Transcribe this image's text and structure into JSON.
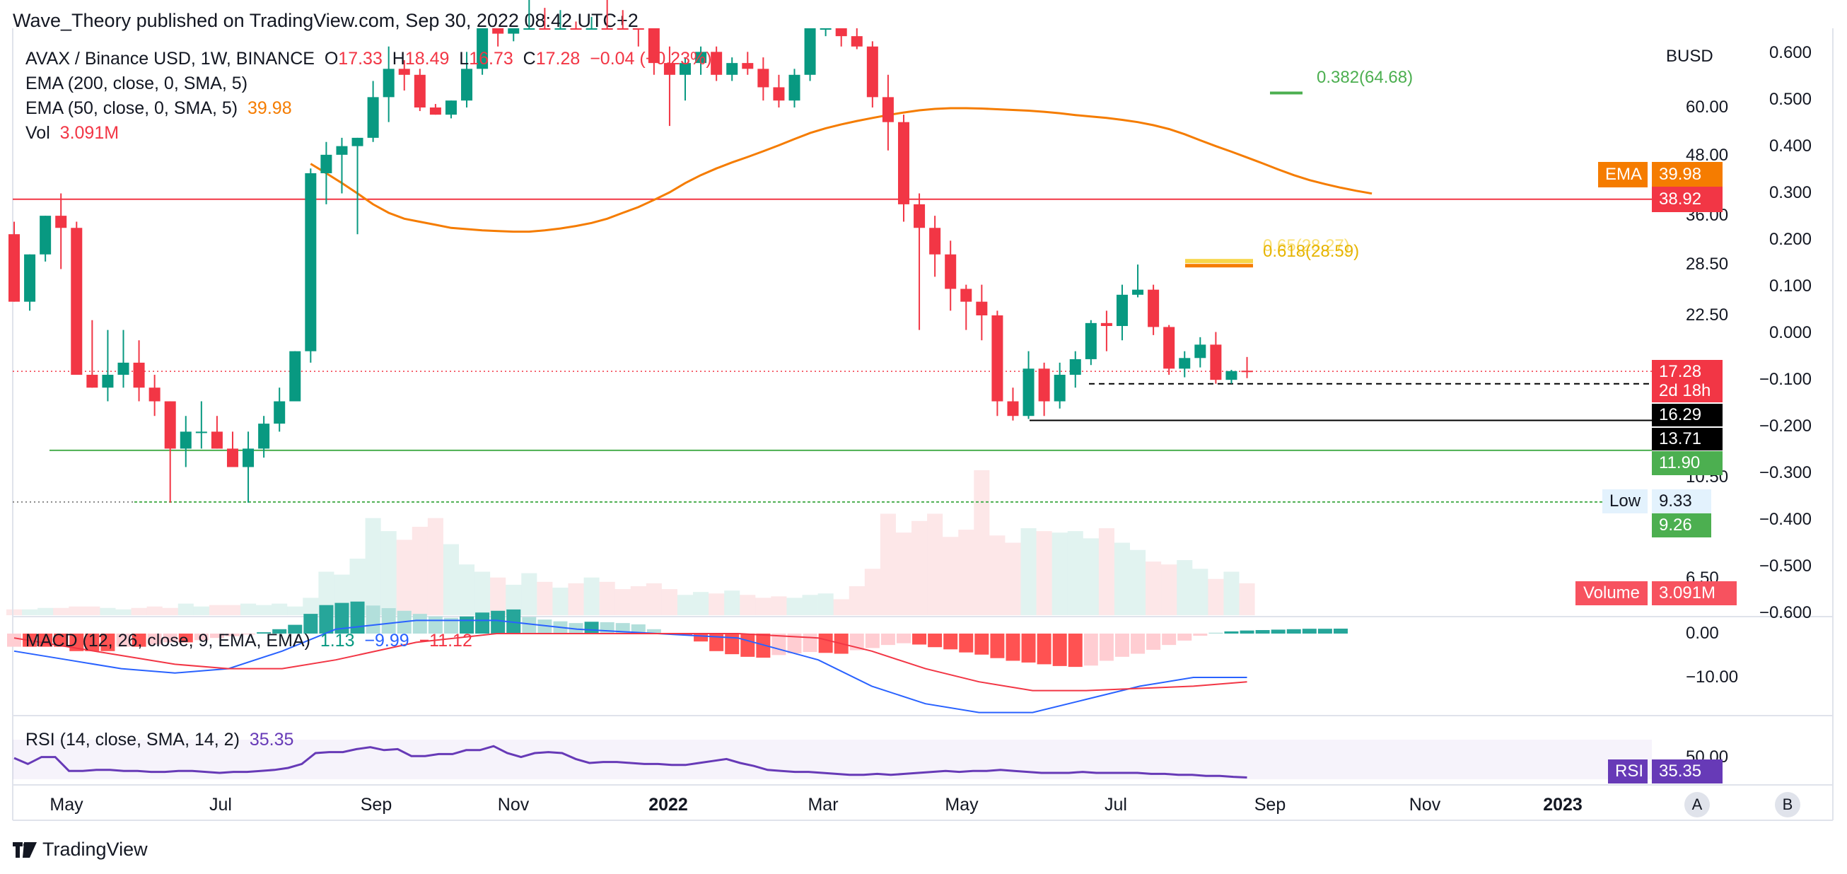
{
  "header": "Wave_Theory published on TradingView.com, Sep 30, 2022 08:42 UTC+2",
  "legend": {
    "symbol": "AVAX / Binance USD, 1W, BINANCE",
    "o_label": "O",
    "o_val": "17.33",
    "h_label": "H",
    "h_val": "18.49",
    "l_label": "L",
    "l_val": "16.73",
    "c_label": "C",
    "c_val": "17.28",
    "change": "−0.04 (−0.23%)",
    "ema200": "EMA (200, close, 0, SMA, 5)",
    "ema50": "EMA (50, close, 0, SMA, 5)",
    "ema50_val": "39.98",
    "vol": "Vol",
    "vol_val": "3.091M",
    "macd": "MACD (12, 26, close, 9, EMA, EMA)",
    "macd_v1": "1.13",
    "macd_v2": "−9.99",
    "macd_v3": "−11.12",
    "rsi": "RSI (14, close, SMA, 14, 2)",
    "rsi_val": "35.35"
  },
  "fib": {
    "f382": "0.382(64.68)",
    "f618": "0.618(28.59)",
    "f618_ghost": "0.65(28.27)"
  },
  "right_axis": {
    "currency": "BUSD",
    "labels": [
      "60.00",
      "48.00",
      "36.00",
      "28.50",
      "22.50",
      "10.50",
      "6.50"
    ],
    "tags": {
      "ema_name": "EMA",
      "ema_val": "39.98",
      "line": "38.92",
      "price": "17.28",
      "countdown": "2d 18h",
      "p1": "16.29",
      "p2": "13.71",
      "p3": "11.90",
      "low_name": "Low",
      "low_val": "9.33",
      "low2": "9.26",
      "vol_name": "Volume",
      "vol_val": "3.091M",
      "rsi_name": "RSI",
      "rsi_val": "35.35"
    },
    "macd_labels": [
      "0.00",
      "−10.00"
    ],
    "rsi_label": "50.00"
  },
  "left_axis": [
    "0.600",
    "0.500",
    "0.400",
    "0.300",
    "0.200",
    "0.100",
    "0.000",
    "−0.100",
    "−0.200",
    "−0.300",
    "−0.400",
    "−0.500",
    "−0.600"
  ],
  "x_axis": [
    "May",
    "Jul",
    "Sep",
    "Nov",
    "2022",
    "Mar",
    "May",
    "Jul",
    "Sep",
    "Nov",
    "2023"
  ],
  "buttons": {
    "a": "A",
    "b": "B"
  },
  "footer": "TradingView",
  "colors": {
    "up": "#089981",
    "down": "#f23645",
    "ema": "#f57c00",
    "macd": "#2962ff",
    "signal": "#f23645",
    "rsi": "#673ab7"
  },
  "chart_data": {
    "type": "candlestick",
    "title": "AVAX / Binance USD, 1W, BINANCE",
    "price_levels": {
      "resistance": 38.92,
      "green_support": 11.9,
      "black_support": 13.71,
      "dashed_support": 16.29,
      "low": 9.33,
      "fib_382": 64.68,
      "fib_618": 28.59
    },
    "candles": [
      {
        "o": 33,
        "h": 35,
        "l": 24,
        "c": 24
      },
      {
        "o": 24,
        "h": 30,
        "l": 23,
        "c": 30
      },
      {
        "o": 30,
        "h": 36,
        "l": 29,
        "c": 36
      },
      {
        "o": 36,
        "h": 40,
        "l": 28,
        "c": 34
      },
      {
        "o": 34,
        "h": 35,
        "l": 17,
        "c": 17
      },
      {
        "o": 17,
        "h": 22,
        "l": 16,
        "c": 16
      },
      {
        "o": 16,
        "h": 21,
        "l": 15,
        "c": 17
      },
      {
        "o": 17,
        "h": 21,
        "l": 16,
        "c": 18
      },
      {
        "o": 18,
        "h": 20,
        "l": 15,
        "c": 16
      },
      {
        "o": 16,
        "h": 17,
        "l": 14,
        "c": 15
      },
      {
        "o": 15,
        "h": 15,
        "l": 9.3,
        "c": 12
      },
      {
        "o": 12,
        "h": 14,
        "l": 11,
        "c": 13
      },
      {
        "o": 13,
        "h": 15,
        "l": 12,
        "c": 13
      },
      {
        "o": 13,
        "h": 14,
        "l": 12,
        "c": 12
      },
      {
        "o": 12,
        "h": 13,
        "l": 11,
        "c": 11
      },
      {
        "o": 11,
        "h": 13,
        "l": 9.3,
        "c": 12
      },
      {
        "o": 12,
        "h": 14,
        "l": 11.5,
        "c": 13.5
      },
      {
        "o": 13.5,
        "h": 16,
        "l": 13,
        "c": 15
      },
      {
        "o": 15,
        "h": 19,
        "l": 15,
        "c": 19
      },
      {
        "o": 19,
        "h": 45,
        "l": 18,
        "c": 44
      },
      {
        "o": 44,
        "h": 51,
        "l": 38,
        "c": 48
      },
      {
        "o": 48,
        "h": 52,
        "l": 40,
        "c": 50
      },
      {
        "o": 50,
        "h": 52,
        "l": 33,
        "c": 52
      },
      {
        "o": 52,
        "h": 68,
        "l": 51,
        "c": 63
      },
      {
        "o": 63,
        "h": 80,
        "l": 56,
        "c": 72
      },
      {
        "o": 72,
        "h": 75,
        "l": 65,
        "c": 70
      },
      {
        "o": 70,
        "h": 72,
        "l": 59,
        "c": 60
      },
      {
        "o": 60,
        "h": 61,
        "l": 58,
        "c": 58
      },
      {
        "o": 58,
        "h": 62,
        "l": 57,
        "c": 62
      },
      {
        "o": 62,
        "h": 78,
        "l": 60,
        "c": 72
      },
      {
        "o": 72,
        "h": 95,
        "l": 70,
        "c": 88
      },
      {
        "o": 88,
        "h": 100,
        "l": 80,
        "c": 85
      },
      {
        "o": 85,
        "h": 147,
        "l": 82,
        "c": 105
      },
      {
        "o": 105,
        "h": 130,
        "l": 100,
        "c": 112
      },
      {
        "o": 112,
        "h": 120,
        "l": 96,
        "c": 98
      },
      {
        "o": 98,
        "h": 110,
        "l": 95,
        "c": 106
      },
      {
        "o": 106,
        "h": 110,
        "l": 90,
        "c": 102
      },
      {
        "o": 102,
        "h": 115,
        "l": 92,
        "c": 108
      },
      {
        "o": 108,
        "h": 120,
        "l": 100,
        "c": 104
      },
      {
        "o": 104,
        "h": 110,
        "l": 95,
        "c": 96
      },
      {
        "o": 96,
        "h": 100,
        "l": 80,
        "c": 92
      },
      {
        "o": 92,
        "h": 95,
        "l": 70,
        "c": 74
      },
      {
        "o": 74,
        "h": 80,
        "l": 55,
        "c": 70
      },
      {
        "o": 70,
        "h": 76,
        "l": 62,
        "c": 74
      },
      {
        "o": 74,
        "h": 80,
        "l": 70,
        "c": 78
      },
      {
        "o": 78,
        "h": 80,
        "l": 68,
        "c": 70
      },
      {
        "o": 70,
        "h": 76,
        "l": 68,
        "c": 74
      },
      {
        "o": 74,
        "h": 78,
        "l": 70,
        "c": 72
      },
      {
        "o": 72,
        "h": 76,
        "l": 62,
        "c": 66
      },
      {
        "o": 66,
        "h": 70,
        "l": 60,
        "c": 62
      },
      {
        "o": 62,
        "h": 72,
        "l": 60,
        "c": 70
      },
      {
        "o": 70,
        "h": 90,
        "l": 68,
        "c": 88
      },
      {
        "o": 88,
        "h": 99,
        "l": 84,
        "c": 93
      },
      {
        "o": 93,
        "h": 96,
        "l": 80,
        "c": 84
      },
      {
        "o": 84,
        "h": 90,
        "l": 79,
        "c": 80
      },
      {
        "o": 80,
        "h": 82,
        "l": 60,
        "c": 63
      },
      {
        "o": 63,
        "h": 70,
        "l": 49,
        "c": 56
      },
      {
        "o": 56,
        "h": 58,
        "l": 35,
        "c": 38
      },
      {
        "o": 38,
        "h": 40,
        "l": 21,
        "c": 34
      },
      {
        "o": 34,
        "h": 36,
        "l": 27,
        "c": 30
      },
      {
        "o": 30,
        "h": 32,
        "l": 23,
        "c": 25.5
      },
      {
        "o": 25.5,
        "h": 26,
        "l": 21,
        "c": 24
      },
      {
        "o": 24,
        "h": 26,
        "l": 20,
        "c": 22.5
      },
      {
        "o": 22.5,
        "h": 23,
        "l": 14,
        "c": 15
      },
      {
        "o": 15,
        "h": 16,
        "l": 13.7,
        "c": 14
      },
      {
        "o": 14,
        "h": 19,
        "l": 13.8,
        "c": 17.5
      },
      {
        "o": 17.5,
        "h": 18,
        "l": 14,
        "c": 15
      },
      {
        "o": 15,
        "h": 18,
        "l": 14.5,
        "c": 17
      },
      {
        "o": 17,
        "h": 19,
        "l": 16,
        "c": 18.3
      },
      {
        "o": 18.3,
        "h": 22,
        "l": 17.8,
        "c": 21.7
      },
      {
        "o": 21.7,
        "h": 23,
        "l": 19,
        "c": 21.4
      },
      {
        "o": 21.4,
        "h": 26,
        "l": 20,
        "c": 24.8
      },
      {
        "o": 24.8,
        "h": 28.6,
        "l": 24.5,
        "c": 25.4
      },
      {
        "o": 25.4,
        "h": 26,
        "l": 20.5,
        "c": 21.3
      },
      {
        "o": 21.3,
        "h": 21.5,
        "l": 17,
        "c": 17.5
      },
      {
        "o": 17.5,
        "h": 19,
        "l": 16.8,
        "c": 18.4
      },
      {
        "o": 18.4,
        "h": 20.3,
        "l": 17.6,
        "c": 19.6
      },
      {
        "o": 19.6,
        "h": 20.8,
        "l": 16.3,
        "c": 16.6
      },
      {
        "o": 16.6,
        "h": 17.4,
        "l": 16.3,
        "c": 17.3
      },
      {
        "o": 17.33,
        "h": 18.49,
        "l": 16.73,
        "c": 17.28
      }
    ],
    "ema50": [
      46,
      44,
      42,
      40,
      38,
      36.5,
      35.5,
      35,
      34.5,
      34,
      33.8,
      33.6,
      33.5,
      33.4,
      33.4,
      33.6,
      33.9,
      34.3,
      34.8,
      35.5,
      36.5,
      37.5,
      38.8,
      40.2,
      42,
      43.6,
      45,
      46.3,
      47.5,
      48.8,
      50.2,
      51.7,
      53.2,
      54.4,
      55.4,
      56.3,
      57.1,
      57.9,
      58.6,
      59.2,
      59.6,
      59.8,
      59.8,
      59.7,
      59.5,
      59.3,
      59.1,
      58.8,
      58.4,
      57.9,
      57.5,
      57.1,
      56.6,
      56,
      55.2,
      54.2,
      52.9,
      51.4,
      50,
      48.7,
      47.4,
      46.1,
      44.8,
      43.6,
      42.6,
      41.8,
      41.1,
      40.5,
      39.98
    ],
    "ema50_start_index": 19,
    "volume": [
      0.04,
      0.04,
      0.05,
      0.05,
      0.06,
      0.06,
      0.05,
      0.04,
      0.05,
      0.06,
      0.05,
      0.08,
      0.06,
      0.07,
      0.07,
      0.08,
      0.07,
      0.08,
      0.06,
      0.12,
      0.3,
      0.28,
      0.39,
      0.67,
      0.58,
      0.52,
      0.61,
      0.67,
      0.49,
      0.35,
      0.3,
      0.26,
      0.21,
      0.29,
      0.23,
      0.19,
      0.22,
      0.26,
      0.23,
      0.18,
      0.2,
      0.22,
      0.18,
      0.14,
      0.16,
      0.15,
      0.17,
      0.14,
      0.12,
      0.13,
      0.12,
      0.14,
      0.15,
      0.11,
      0.2,
      0.32,
      0.7,
      0.57,
      0.65,
      0.7,
      0.54,
      0.59,
      1.0,
      0.55,
      0.5,
      0.6,
      0.58,
      0.57,
      0.58,
      0.53,
      0.6,
      0.5,
      0.45,
      0.37,
      0.35,
      0.38,
      0.32,
      0.25,
      0.3,
      0.22
    ],
    "macd_hist": [
      -3,
      -3,
      -3,
      -3,
      -4,
      -4,
      -4,
      -3,
      -3,
      -2.5,
      -2,
      -2,
      -1.5,
      -1,
      -0.6,
      -0.2,
      0.3,
      1,
      2,
      4.5,
      6.5,
      7,
      7.3,
      6.4,
      5.8,
      5.2,
      4.5,
      3.9,
      3.6,
      3.9,
      4.8,
      5.2,
      5.5,
      3.8,
      3.2,
      2.8,
      2.4,
      2.7,
      2.6,
      2.4,
      2.1,
      1,
      0,
      -0.3,
      -1.8,
      -4,
      -4.7,
      -5.3,
      -5.5,
      -4.9,
      -4.5,
      -4.2,
      -4.4,
      -4.6,
      -3.8,
      -3.3,
      -2.6,
      -2.2,
      -2.5,
      -3.1,
      -3.6,
      -4.3,
      -4.8,
      -5.6,
      -6.2,
      -6.6,
      -7,
      -7.4,
      -7.6,
      -7.3,
      -6.2,
      -5.3,
      -4.6,
      -3.7,
      -2.6,
      -1.6,
      -0.5,
      0.2,
      0.5,
      0.7,
      0.8,
      0.9,
      1.0,
      1.1,
      1.1,
      1.13
    ]
  }
}
